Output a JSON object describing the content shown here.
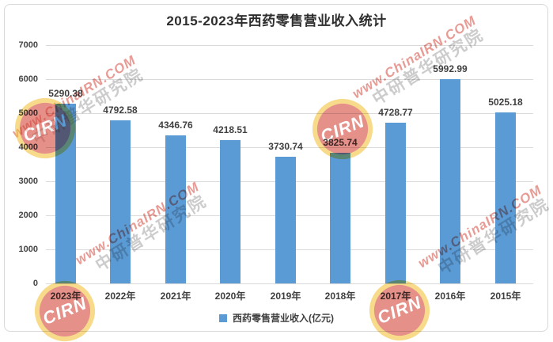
{
  "chart_data": {
    "type": "bar",
    "title": "2015-2023年西药零售营业收入统计",
    "categories": [
      "2023年",
      "2022年",
      "2021年",
      "2020年",
      "2019年",
      "2018年",
      "2017年",
      "2016年",
      "2015年"
    ],
    "series": [
      {
        "name": "西药零售营业收入(亿元)",
        "values": [
          5290.38,
          4792.58,
          4346.76,
          4218.51,
          3730.74,
          3825.74,
          4728.77,
          5992.99,
          5025.18
        ]
      }
    ],
    "xlabel": "",
    "ylabel": "",
    "ylim": [
      0,
      7000
    ],
    "yticks": [
      0,
      1000,
      2000,
      3000,
      4000,
      5000,
      6000,
      7000
    ],
    "grid": true,
    "legend_position": "bottom",
    "bar_color": "#5B9BD5",
    "title_color": "#2e2e2e",
    "label_color": "#3f3f3f"
  },
  "watermark": {
    "url_text": "www.ChinaIRN.COM",
    "org_text": "中研普华研究院",
    "stamp_text": "CIRN",
    "red": "#D0382A",
    "yellow": "#F1BE2C",
    "gray": "#8f8f8f"
  }
}
